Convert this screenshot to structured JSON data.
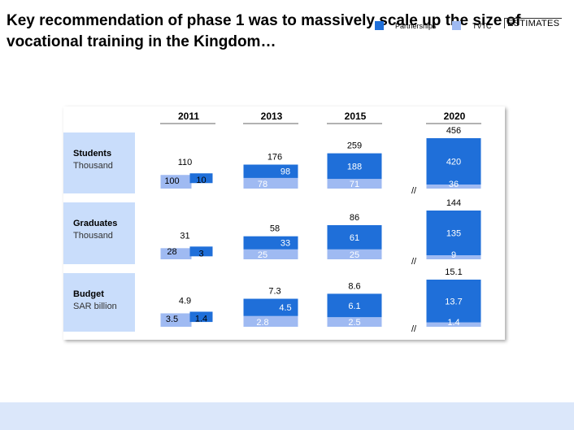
{
  "title": "Key recommendation of phase 1 was to massively scale up the size of vocational training in the Kingdom…",
  "legend": [
    {
      "label": "Partnerships",
      "color": "#1f6fd9"
    },
    {
      "label": "TVTC",
      "color": "#9fbaf2"
    }
  ],
  "stamp": "ESTIMATES",
  "colors": {
    "partnerships": "#1f6fd9",
    "tvtc": "#9fbaf2",
    "row_label_bg": "#c9ddfb",
    "footer": "#dbe7fa"
  },
  "chart_data": {
    "type": "bar",
    "stacked": true,
    "categories": [
      "2011",
      "2013",
      "2015",
      "2020"
    ],
    "axis_break_before": "2020",
    "grid": false,
    "rows": [
      {
        "label": "Students",
        "unit": "Thousand",
        "totals": [
          110,
          176,
          259,
          456
        ],
        "series": [
          {
            "name": "TVTC",
            "values": [
              100,
              78,
              71,
              36
            ]
          },
          {
            "name": "Partnerships",
            "values": [
              10,
              98,
              188,
              420
            ]
          }
        ]
      },
      {
        "label": "Graduates",
        "unit": "Thousand",
        "totals": [
          31,
          58,
          86,
          144
        ],
        "series": [
          {
            "name": "TVTC",
            "values": [
              28,
              25,
              25,
              9
            ]
          },
          {
            "name": "Partnerships",
            "values": [
              3,
              33,
              61,
              135
            ]
          }
        ]
      },
      {
        "label": "Budget",
        "unit": "SAR billion",
        "totals": [
          4.9,
          7.3,
          8.6,
          15.1
        ],
        "series": [
          {
            "name": "TVTC",
            "values": [
              3.5,
              2.8,
              2.5,
              1.4
            ]
          },
          {
            "name": "Partnerships",
            "values": [
              1.4,
              4.5,
              6.1,
              13.7
            ]
          }
        ]
      }
    ]
  }
}
